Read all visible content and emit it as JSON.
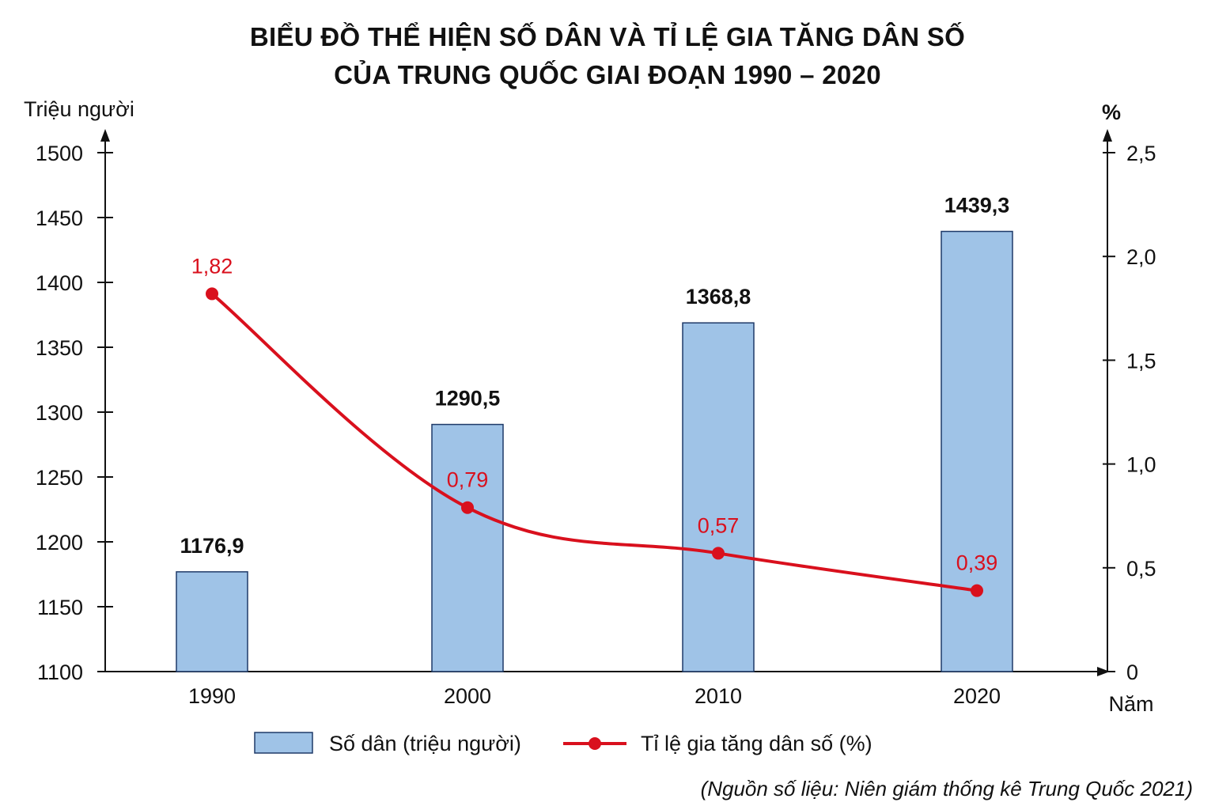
{
  "chart_data": {
    "type": "bar+line",
    "title_line1": "BIỂU ĐỒ THỂ HIỆN SỐ DÂN VÀ TỈ LỆ GIA TĂNG DÂN SỐ",
    "title_line2": "CỦA TRUNG QUỐC GIAI ĐOẠN 1990 – 2020",
    "categories": [
      "1990",
      "2000",
      "2010",
      "2020"
    ],
    "left_axis": {
      "label": "Triệu người",
      "ylim": [
        1100,
        1500
      ],
      "ticks": [
        "1100",
        "1150",
        "1200",
        "1250",
        "1300",
        "1350",
        "1400",
        "1450",
        "1500"
      ]
    },
    "right_axis": {
      "label": "%",
      "ylim": [
        0,
        2.5
      ],
      "ticks": [
        "0",
        "0,5",
        "1,0",
        "1,5",
        "2,0",
        "2,5"
      ]
    },
    "x_axis_label": "Năm",
    "series": [
      {
        "name": "Số dân (triệu người)",
        "type": "bar",
        "axis": "left",
        "values": [
          1176.9,
          1290.5,
          1368.8,
          1439.3
        ],
        "labels": [
          "1176,9",
          "1290,5",
          "1368,8",
          "1439,3"
        ]
      },
      {
        "name": "Tỉ lệ gia tăng dân số (%)",
        "type": "line",
        "axis": "right",
        "values": [
          1.82,
          0.79,
          0.57,
          0.39
        ],
        "labels": [
          "1,82",
          "0,79",
          "0,57",
          "0,39"
        ]
      }
    ],
    "legend_position": "bottom",
    "source": "(Nguồn số liệu: Niên giám thống kê Trung Quốc 2021)"
  },
  "colors": {
    "bar_fill": "#9fc3e7",
    "bar_stroke": "#1f3a68",
    "line": "#d9101d",
    "axis": "#111111"
  }
}
